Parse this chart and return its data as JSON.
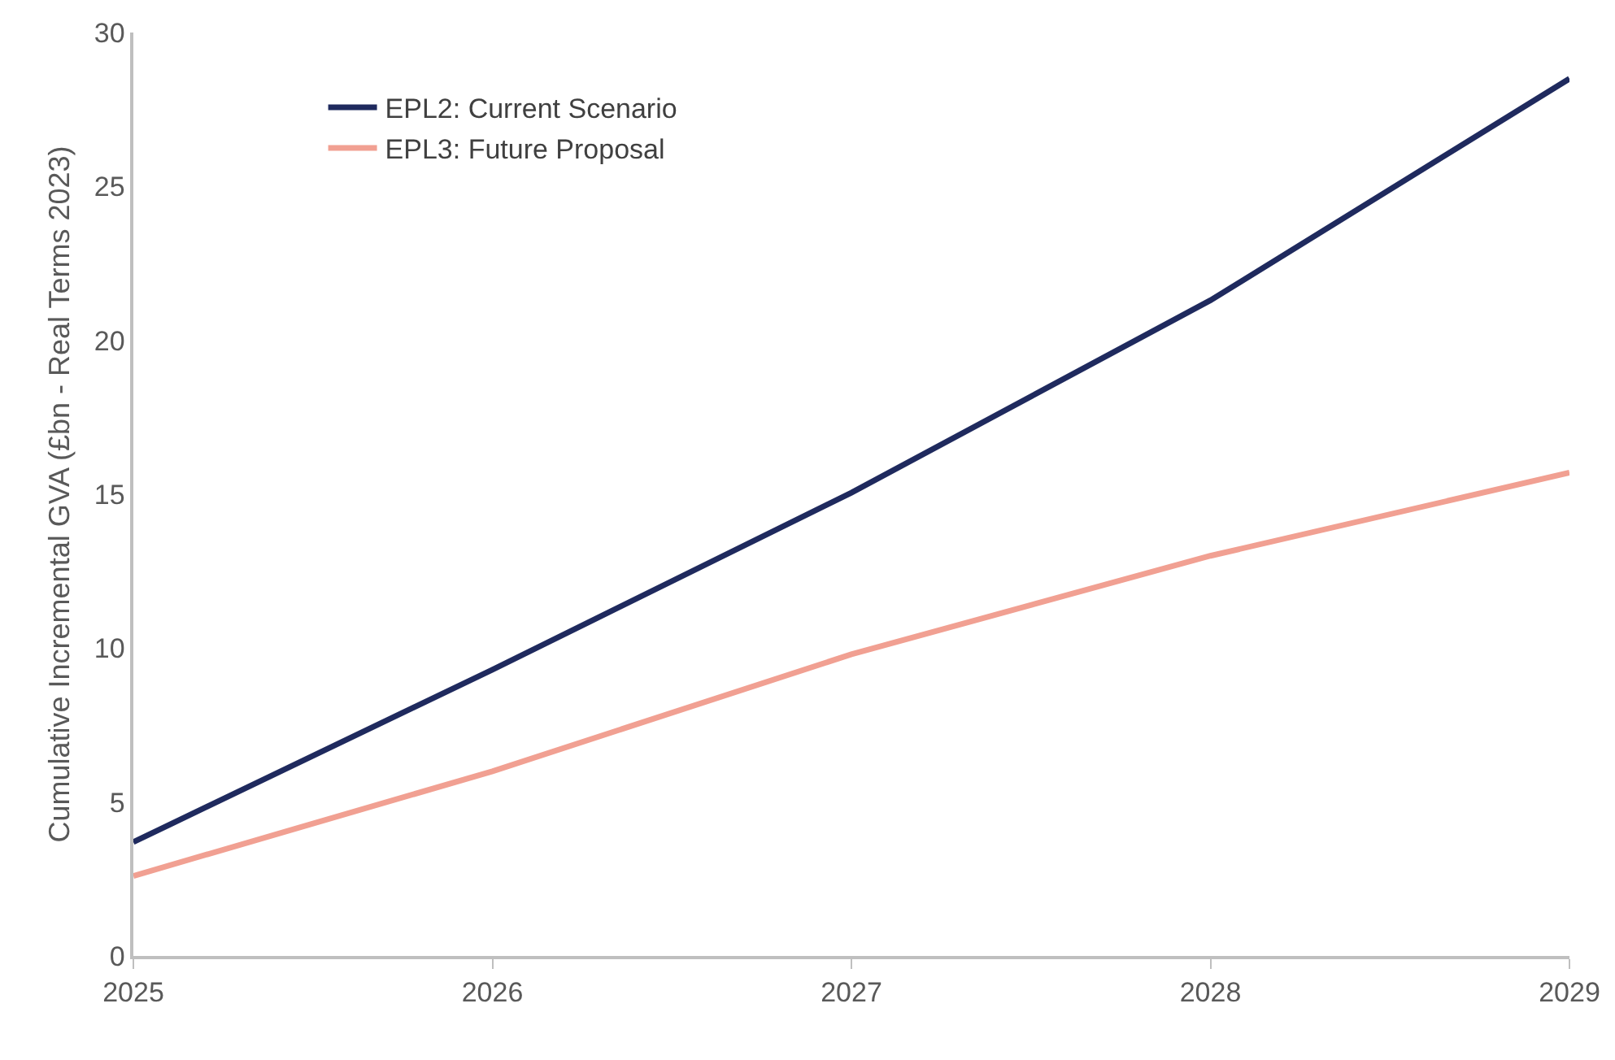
{
  "chart_data": {
    "type": "line",
    "ylabel": "Cumulative Incremental GVA (£bn - Real Terms 2023)",
    "x": [
      2025,
      2026,
      2027,
      2028,
      2029
    ],
    "series": [
      {
        "name": "EPL2: Current Scenario",
        "color": "#1f2a5e",
        "values": [
          3.7,
          9.3,
          15.05,
          21.3,
          28.5
        ]
      },
      {
        "name": "EPL3: Future Proposal",
        "color": "#f1a092",
        "values": [
          2.6,
          6.0,
          9.8,
          13.0,
          15.7
        ]
      }
    ],
    "xlim": [
      2025,
      2029
    ],
    "xticks": [
      2025,
      2026,
      2027,
      2028,
      2029
    ],
    "ylim": [
      0,
      30
    ],
    "yticks": [
      0,
      5,
      10,
      15,
      20,
      25,
      30
    ],
    "grid": false,
    "legend": "top left",
    "marker": "none",
    "line_style": "solid"
  }
}
